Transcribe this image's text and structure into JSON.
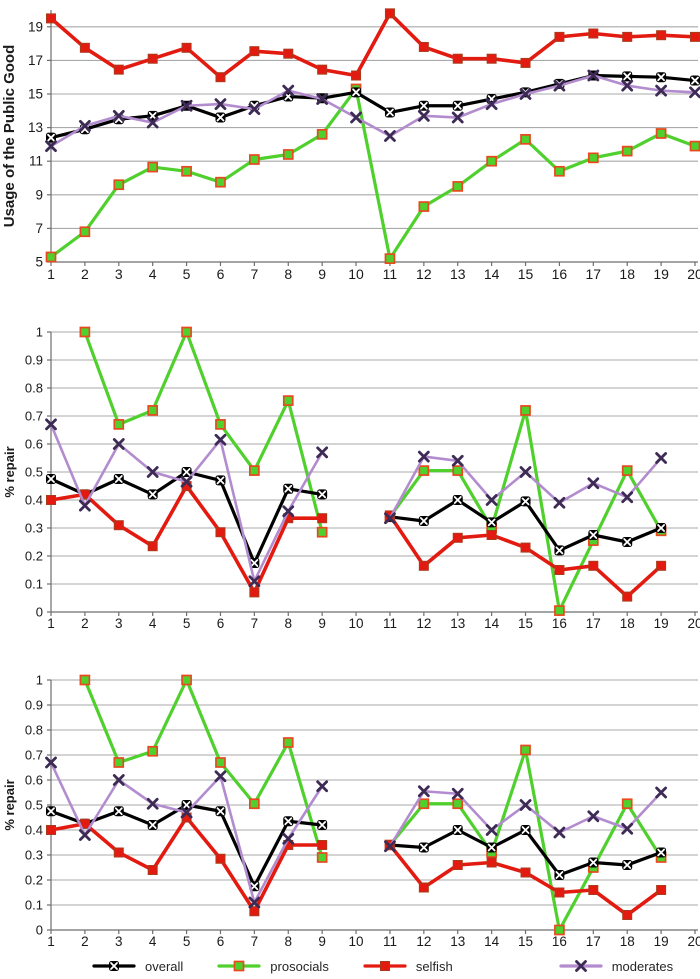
{
  "figure": {
    "legend": {
      "items": [
        {
          "series": "overall",
          "label": "overall"
        },
        {
          "series": "prosocials",
          "label": "prosocials"
        },
        {
          "series": "selfish",
          "label": "selfish"
        },
        {
          "series": "moderates",
          "label": "moderates"
        }
      ]
    },
    "colors": {
      "overall_line": "#000000",
      "overall_marker_fill": "#000000",
      "overall_marker_cross": "#ffffff",
      "prosocials_line": "#4fd02c",
      "prosocials_marker_fill": "#4fd02c",
      "prosocials_marker_border": "#e8491f",
      "selfish_line": "#e31a10",
      "selfish_marker_fill": "#e31a10",
      "selfish_marker_border": "#a93c1d",
      "moderates_line": "#b28cce",
      "moderates_marker": "#3d2b55",
      "gridline": "#a9a9a9",
      "axis": "#6e6e6e",
      "tick_text": "#1a1a1a"
    }
  },
  "chart_data": [
    {
      "type": "line",
      "title": "",
      "xlabel": "",
      "ylabel": "Usage of the Public Good",
      "x": [
        1,
        2,
        3,
        4,
        5,
        6,
        7,
        8,
        9,
        10,
        11,
        12,
        13,
        14,
        15,
        16,
        17,
        18,
        19,
        20
      ],
      "ylim": [
        5,
        20
      ],
      "yticks": [
        5,
        7,
        9,
        11,
        13,
        15,
        17,
        19
      ],
      "grid": "horizontal",
      "legend_position": "bottom",
      "series": [
        {
          "name": "overall",
          "values": [
            12.4,
            12.9,
            13.5,
            13.7,
            14.3,
            13.6,
            14.3,
            14.85,
            14.75,
            15.1,
            13.9,
            14.3,
            14.3,
            14.7,
            15.1,
            15.6,
            16.1,
            16.05,
            16.0,
            15.8
          ]
        },
        {
          "name": "prosocials",
          "values": [
            5.3,
            6.8,
            9.6,
            10.65,
            10.4,
            9.75,
            11.1,
            11.4,
            12.6,
            15.3,
            5.2,
            8.3,
            9.5,
            11.0,
            12.3,
            10.4,
            11.2,
            11.6,
            12.65,
            11.9
          ]
        },
        {
          "name": "selfish",
          "values": [
            19.5,
            17.75,
            16.45,
            17.1,
            17.75,
            16.0,
            17.55,
            17.4,
            16.45,
            16.1,
            19.8,
            17.8,
            17.1,
            17.1,
            16.85,
            18.4,
            18.6,
            18.4,
            18.5,
            18.4
          ]
        },
        {
          "name": "moderates",
          "values": [
            11.9,
            13.1,
            13.7,
            13.3,
            14.3,
            14.4,
            14.1,
            15.2,
            14.7,
            13.6,
            12.5,
            13.7,
            13.6,
            14.4,
            15.0,
            15.5,
            16.1,
            15.5,
            15.2,
            15.1
          ]
        }
      ]
    },
    {
      "type": "line",
      "title": "",
      "xlabel": "",
      "ylabel": "% repair",
      "x": [
        1,
        2,
        3,
        4,
        5,
        6,
        7,
        8,
        9,
        10,
        11,
        12,
        13,
        14,
        15,
        16,
        17,
        18,
        19,
        20
      ],
      "ylim": [
        0,
        1
      ],
      "yticks": [
        0,
        0.1,
        0.2,
        0.3,
        0.4,
        0.5,
        0.6,
        0.7,
        0.8,
        0.9,
        1
      ],
      "grid": "horizontal",
      "note": "no data at x=10 and x=20 (gap in all series)",
      "series": [
        {
          "name": "overall",
          "values": [
            0.475,
            0.42,
            0.475,
            0.42,
            0.5,
            0.47,
            0.175,
            0.44,
            0.42,
            null,
            0.34,
            0.325,
            0.4,
            0.32,
            0.395,
            0.22,
            0.275,
            0.25,
            0.3,
            null
          ]
        },
        {
          "name": "prosocials",
          "values": [
            null,
            1.0,
            0.67,
            0.72,
            1.0,
            0.67,
            0.505,
            0.755,
            0.285,
            null,
            0.34,
            0.505,
            0.505,
            0.3,
            0.72,
            0.005,
            0.255,
            0.505,
            0.29,
            null
          ]
        },
        {
          "name": "selfish",
          "values": [
            0.4,
            0.42,
            0.31,
            0.235,
            0.45,
            0.285,
            0.07,
            0.335,
            0.335,
            null,
            0.345,
            0.165,
            0.265,
            0.275,
            0.23,
            0.15,
            0.165,
            0.055,
            0.165,
            null
          ]
        },
        {
          "name": "moderates",
          "values": [
            0.67,
            0.38,
            0.6,
            0.5,
            0.465,
            0.615,
            0.11,
            0.36,
            0.57,
            null,
            0.335,
            0.555,
            0.54,
            0.4,
            0.5,
            0.39,
            0.46,
            0.41,
            0.55,
            null
          ]
        }
      ]
    },
    {
      "type": "line",
      "title": "",
      "xlabel": "",
      "ylabel": "% repair",
      "x": [
        1,
        2,
        3,
        4,
        5,
        6,
        7,
        8,
        9,
        10,
        11,
        12,
        13,
        14,
        15,
        16,
        17,
        18,
        19,
        20
      ],
      "ylim": [
        0,
        1
      ],
      "yticks": [
        0,
        0.1,
        0.2,
        0.3,
        0.4,
        0.5,
        0.6,
        0.7,
        0.8,
        0.9,
        1
      ],
      "grid": "horizontal",
      "note": "no data at x=10 and x=20 (gap in all series)",
      "series": [
        {
          "name": "overall",
          "values": [
            0.475,
            0.425,
            0.475,
            0.42,
            0.5,
            0.475,
            0.175,
            0.435,
            0.42,
            null,
            0.34,
            0.33,
            0.4,
            0.33,
            0.4,
            0.22,
            0.27,
            0.26,
            0.31,
            null
          ]
        },
        {
          "name": "prosocials",
          "values": [
            null,
            1.0,
            0.67,
            0.715,
            1.0,
            0.67,
            0.505,
            0.75,
            0.29,
            null,
            0.34,
            0.505,
            0.505,
            0.31,
            0.72,
            0.0,
            0.25,
            0.505,
            0.29,
            null
          ]
        },
        {
          "name": "selfish",
          "values": [
            0.4,
            0.425,
            0.31,
            0.24,
            0.45,
            0.285,
            0.075,
            0.34,
            0.34,
            null,
            0.34,
            0.17,
            0.26,
            0.27,
            0.23,
            0.15,
            0.16,
            0.06,
            0.16,
            null
          ]
        },
        {
          "name": "moderates",
          "values": [
            0.67,
            0.38,
            0.6,
            0.505,
            0.47,
            0.615,
            0.11,
            0.365,
            0.575,
            null,
            0.335,
            0.555,
            0.545,
            0.4,
            0.5,
            0.39,
            0.455,
            0.405,
            0.55,
            null
          ]
        }
      ]
    }
  ]
}
